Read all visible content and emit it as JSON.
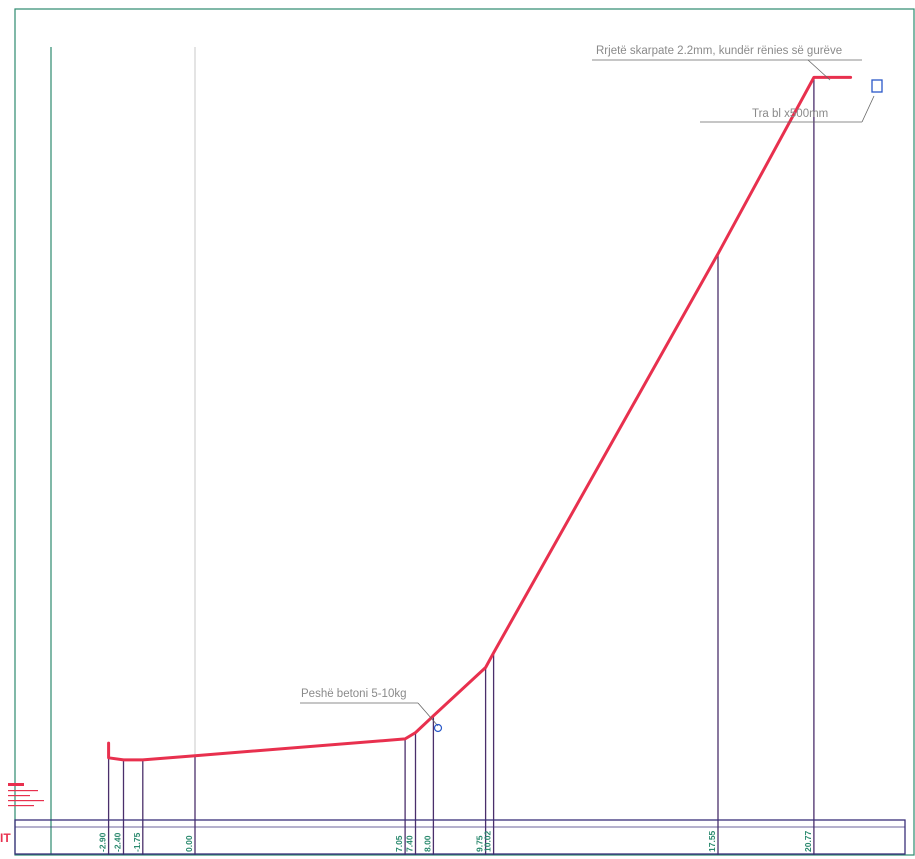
{
  "drawing": {
    "units": "m",
    "colors": {
      "frame": "#2c8a6f",
      "profile_line": "#e8304e",
      "leader_line": "#666666",
      "callout_text": "#8a8a8a",
      "vertical_line": "#4a2f6b",
      "station_text": "#2c8a6f",
      "band_border": "#3a2f7a",
      "corner_mark": "#e8304e",
      "end_mark": "#2a58c8"
    },
    "profile": {
      "points": [
        {
          "x": -2.9,
          "y": 0.95
        },
        {
          "x": -2.9,
          "y": 0.6
        },
        {
          "x": -2.4,
          "y": 0.55
        },
        {
          "x": -1.75,
          "y": 0.55
        },
        {
          "x": 0.0,
          "y": 0.65
        },
        {
          "x": 7.05,
          "y": 1.05
        },
        {
          "x": 7.4,
          "y": 1.2
        },
        {
          "x": 8.0,
          "y": 1.6
        },
        {
          "x": 9.75,
          "y": 2.75
        },
        {
          "x": 10.02,
          "y": 3.1
        },
        {
          "x": 17.55,
          "y": 12.6
        },
        {
          "x": 20.77,
          "y": 16.8
        },
        {
          "x": 22.0,
          "y": 16.8
        }
      ]
    },
    "stations": [
      {
        "x": -2.9,
        "label": "-2.90"
      },
      {
        "x": -2.4,
        "label": "-2.40"
      },
      {
        "x": -1.75,
        "label": "-1.75"
      },
      {
        "x": 0.0,
        "label": "0.00"
      },
      {
        "x": 7.05,
        "label": "7.05"
      },
      {
        "x": 7.4,
        "label": "7.40"
      },
      {
        "x": 8.0,
        "label": "8.00"
      },
      {
        "x": 9.75,
        "label": "9.75"
      },
      {
        "x": 10.02,
        "label": "10.02"
      },
      {
        "x": 17.55,
        "label": "17.55"
      },
      {
        "x": 20.77,
        "label": "20.77"
      }
    ],
    "reference_axis": {
      "x": 0.0
    },
    "callouts": {
      "net": "Rrjetë skarpate 2.2mm, kundër rënies së gurëve",
      "beam": "Tra bl  x500mm",
      "weight": "Peshë betoni 5-10kg"
    },
    "band_label": "IT"
  }
}
